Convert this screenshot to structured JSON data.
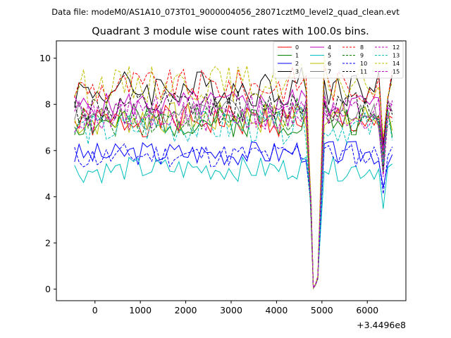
{
  "chart_data": {
    "type": "line",
    "suptitle": "Data file: modeM0/AS1A10_073T01_9000004056_28071cztM0_level2_quad_clean.evt",
    "title": "Quadrant 3 module wise count rates with 100.0s bins.",
    "xlabel": "",
    "ylabel": "",
    "x_offset_label": "+3.4496e8",
    "xlim": [
      -850,
      6850
    ],
    "ylim": [
      -0.5,
      10.75
    ],
    "x_ticks": [
      0,
      1000,
      2000,
      3000,
      4000,
      5000,
      6000
    ],
    "y_ticks": [
      0,
      2,
      4,
      6,
      8,
      10
    ],
    "legend_position": "top-right",
    "legend_columns": 4,
    "series": [
      {
        "name": "0",
        "color": "#ff0000",
        "dash": "solid",
        "base": 7.3,
        "amp": 0.4,
        "seed": 1
      },
      {
        "name": "1",
        "color": "#008000",
        "dash": "solid",
        "base": 7.3,
        "amp": 0.4,
        "seed": 2
      },
      {
        "name": "2",
        "color": "#0000ff",
        "dash": "solid",
        "base": 5.9,
        "amp": 0.3,
        "seed": 3
      },
      {
        "name": "3",
        "color": "#000000",
        "dash": "solid",
        "base": 8.7,
        "amp": 0.45,
        "seed": 4
      },
      {
        "name": "4",
        "color": "#bf00bf",
        "dash": "solid",
        "base": 8.0,
        "amp": 0.35,
        "seed": 5
      },
      {
        "name": "5",
        "color": "#00bfbf",
        "dash": "solid",
        "base": 5.2,
        "amp": 0.3,
        "seed": 6
      },
      {
        "name": "6",
        "color": "#bfbf00",
        "dash": "solid",
        "base": 7.4,
        "amp": 0.4,
        "seed": 7
      },
      {
        "name": "7",
        "color": "#808080",
        "dash": "solid",
        "base": 7.6,
        "amp": 0.4,
        "seed": 8
      },
      {
        "name": "8",
        "color": "#ff0000",
        "dash": "dashed",
        "base": 8.8,
        "amp": 0.4,
        "seed": 9
      },
      {
        "name": "9",
        "color": "#008000",
        "dash": "dashed",
        "base": 7.4,
        "amp": 0.4,
        "seed": 10
      },
      {
        "name": "10",
        "color": "#0000ff",
        "dash": "dashed",
        "base": 5.8,
        "amp": 0.3,
        "seed": 11
      },
      {
        "name": "11",
        "color": "#000000",
        "dash": "dashed",
        "base": 7.9,
        "amp": 0.4,
        "seed": 12
      },
      {
        "name": "12",
        "color": "#bf00bf",
        "dash": "dashed",
        "base": 7.7,
        "amp": 0.4,
        "seed": 13
      },
      {
        "name": "13",
        "color": "#00bfbf",
        "dash": "dashed",
        "base": 7.0,
        "amp": 0.4,
        "seed": 14
      },
      {
        "name": "14",
        "color": "#bfbf00",
        "dash": "dashed",
        "base": 8.9,
        "amp": 0.45,
        "seed": 15
      },
      {
        "name": "15",
        "color": "#bf00bf",
        "dash": "dashed",
        "base": 7.5,
        "amp": 0.4,
        "seed": 16
      }
    ],
    "x_start": -450,
    "x_end": 6610,
    "bin": 100,
    "dip_x": [
      4760,
      4810,
      4860,
      4910
    ],
    "dip_values": [
      3.5,
      0.05,
      0.2,
      0.5
    ],
    "dip2_x": [
      6290,
      6340,
      6390
    ],
    "dip2_factor": 0.72
  }
}
